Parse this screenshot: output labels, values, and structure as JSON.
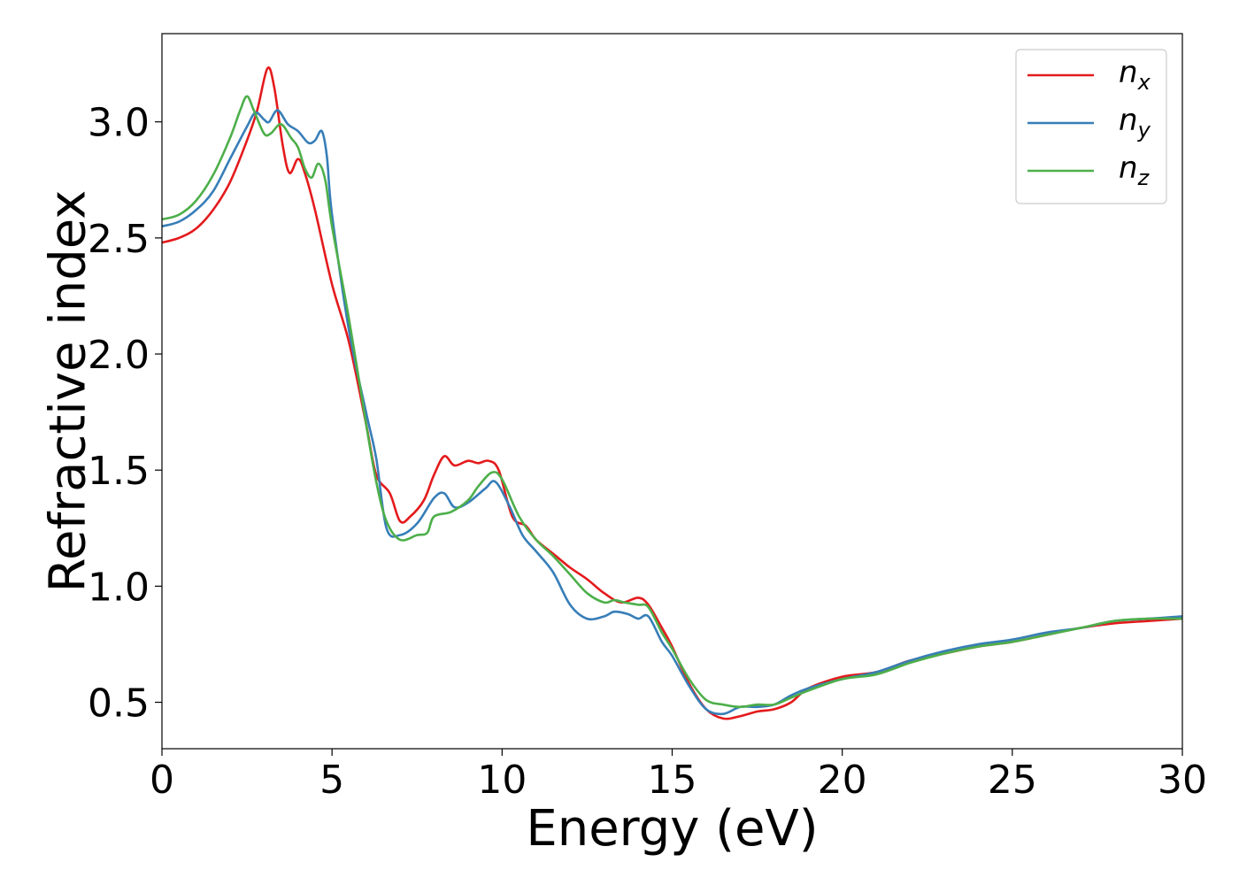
{
  "chart_data": {
    "type": "line",
    "title": "",
    "xlabel": "Energy (eV)",
    "ylabel": "Refractive index",
    "xlim": [
      0,
      30
    ],
    "ylim": [
      0.3,
      3.38
    ],
    "xticks": [
      0,
      5,
      10,
      15,
      20,
      25,
      30
    ],
    "yticks": [
      0.5,
      1.0,
      1.5,
      2.0,
      2.5,
      3.0
    ],
    "xtick_labels": [
      "0",
      "5",
      "10",
      "15",
      "20",
      "25",
      "30"
    ],
    "ytick_labels": [
      "0.5",
      "1.0",
      "1.5",
      "2.0",
      "2.5",
      "3.0"
    ],
    "grid": false,
    "legend_position": "top-right",
    "series": [
      {
        "name": "n_x",
        "label_main": "n",
        "label_sub": "x",
        "color": "#e41a1c",
        "x": [
          0,
          0.5,
          1,
          1.5,
          2,
          2.5,
          2.8,
          3.1,
          3.3,
          3.55,
          3.75,
          4.0,
          4.2,
          4.5,
          5.0,
          5.5,
          6.0,
          6.3,
          6.7,
          7.0,
          7.3,
          7.7,
          8.0,
          8.3,
          8.6,
          9.0,
          9.3,
          9.6,
          9.9,
          10.3,
          10.7,
          11.0,
          11.5,
          12.0,
          12.5,
          13.0,
          13.5,
          14.0,
          14.3,
          14.7,
          15.0,
          15.5,
          16.0,
          16.5,
          17.0,
          17.5,
          18.0,
          18.5,
          19.0,
          20.0,
          21.0,
          22.0,
          23.0,
          24.0,
          25.0,
          26.0,
          27.0,
          28.0,
          29.0,
          30.0
        ],
        "y": [
          2.48,
          2.5,
          2.54,
          2.62,
          2.74,
          2.92,
          3.05,
          3.23,
          3.15,
          2.9,
          2.78,
          2.84,
          2.78,
          2.62,
          2.3,
          2.05,
          1.7,
          1.48,
          1.4,
          1.28,
          1.3,
          1.37,
          1.48,
          1.56,
          1.52,
          1.54,
          1.53,
          1.54,
          1.5,
          1.3,
          1.26,
          1.2,
          1.14,
          1.08,
          1.03,
          0.97,
          0.93,
          0.95,
          0.92,
          0.82,
          0.74,
          0.58,
          0.47,
          0.43,
          0.44,
          0.46,
          0.47,
          0.5,
          0.56,
          0.61,
          0.63,
          0.68,
          0.71,
          0.74,
          0.76,
          0.79,
          0.82,
          0.84,
          0.85,
          0.86
        ]
      },
      {
        "name": "n_y",
        "label_main": "n",
        "label_sub": "y",
        "color": "#377eb8",
        "x": [
          0,
          0.5,
          1,
          1.5,
          2,
          2.5,
          2.75,
          3.0,
          3.15,
          3.4,
          3.7,
          4.0,
          4.3,
          4.5,
          4.7,
          4.85,
          5.0,
          5.5,
          6.0,
          6.3,
          6.6,
          7.0,
          7.5,
          8.0,
          8.3,
          8.6,
          9.0,
          9.5,
          9.8,
          10.2,
          10.6,
          11.0,
          11.5,
          12.0,
          12.5,
          13.0,
          13.3,
          13.7,
          14.0,
          14.3,
          14.7,
          15.0,
          15.5,
          16.0,
          16.5,
          17.0,
          17.5,
          18.0,
          18.5,
          19.0,
          20.0,
          21.0,
          22.0,
          23.0,
          24.0,
          25.0,
          26.0,
          27.0,
          28.0,
          29.0,
          30.0
        ],
        "y": [
          2.55,
          2.57,
          2.62,
          2.7,
          2.84,
          2.98,
          3.04,
          3.01,
          3.0,
          3.05,
          2.99,
          2.96,
          2.91,
          2.92,
          2.96,
          2.85,
          2.6,
          2.1,
          1.75,
          1.55,
          1.25,
          1.22,
          1.27,
          1.38,
          1.4,
          1.34,
          1.36,
          1.42,
          1.45,
          1.35,
          1.22,
          1.15,
          1.06,
          0.92,
          0.86,
          0.87,
          0.89,
          0.88,
          0.86,
          0.87,
          0.76,
          0.7,
          0.57,
          0.47,
          0.45,
          0.48,
          0.48,
          0.49,
          0.53,
          0.56,
          0.6,
          0.63,
          0.68,
          0.72,
          0.75,
          0.77,
          0.8,
          0.82,
          0.85,
          0.86,
          0.87
        ]
      },
      {
        "name": "n_z",
        "label_main": "n",
        "label_sub": "z",
        "color": "#4daf4a",
        "x": [
          0,
          0.5,
          1,
          1.5,
          2,
          2.3,
          2.5,
          2.7,
          3.0,
          3.2,
          3.5,
          3.8,
          4.0,
          4.2,
          4.4,
          4.6,
          4.8,
          5.0,
          5.5,
          6.0,
          6.3,
          6.6,
          7.0,
          7.5,
          7.8,
          8.0,
          8.5,
          9.0,
          9.3,
          9.7,
          10.0,
          10.5,
          11.0,
          11.5,
          12.0,
          12.5,
          13.0,
          13.3,
          13.6,
          14.0,
          14.3,
          14.7,
          15.0,
          15.5,
          16.0,
          16.5,
          17.0,
          17.5,
          18.0,
          18.5,
          19.0,
          20.0,
          21.0,
          22.0,
          23.0,
          24.0,
          25.0,
          26.0,
          27.0,
          28.0,
          29.0,
          30.0
        ],
        "y": [
          2.58,
          2.6,
          2.66,
          2.77,
          2.93,
          3.05,
          3.11,
          3.05,
          2.95,
          2.95,
          2.99,
          2.93,
          2.89,
          2.8,
          2.76,
          2.82,
          2.75,
          2.55,
          2.15,
          1.7,
          1.45,
          1.28,
          1.2,
          1.22,
          1.23,
          1.3,
          1.32,
          1.37,
          1.43,
          1.49,
          1.46,
          1.3,
          1.2,
          1.13,
          1.05,
          0.97,
          0.93,
          0.94,
          0.93,
          0.92,
          0.91,
          0.8,
          0.73,
          0.6,
          0.51,
          0.49,
          0.48,
          0.49,
          0.49,
          0.52,
          0.55,
          0.6,
          0.62,
          0.67,
          0.71,
          0.74,
          0.76,
          0.79,
          0.82,
          0.85,
          0.86,
          0.86
        ]
      }
    ]
  }
}
